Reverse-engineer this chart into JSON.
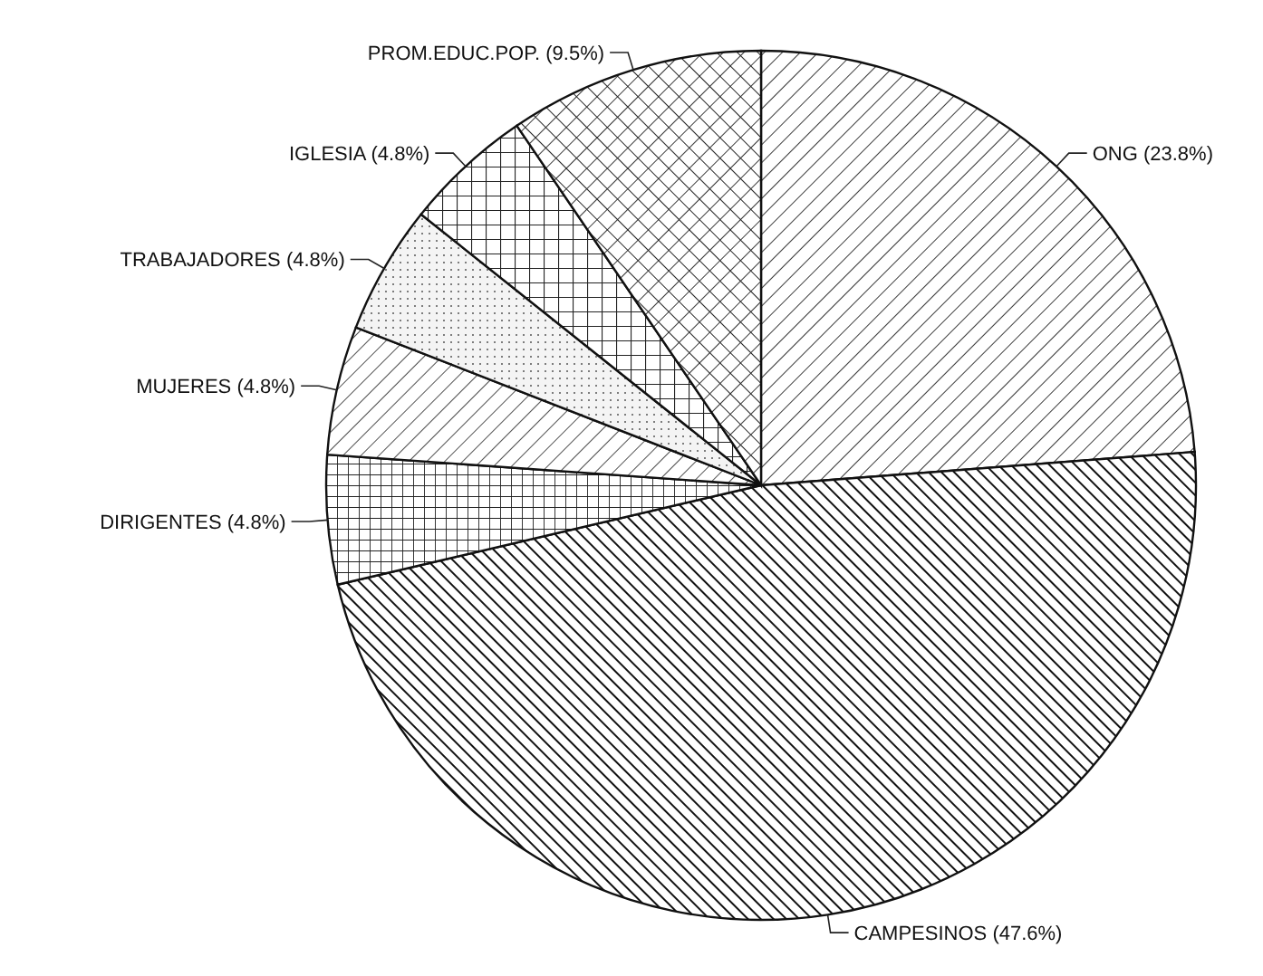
{
  "chart_data": {
    "type": "pie",
    "categories": [
      "ONG",
      "CAMPESINOS",
      "DIRIGENTES",
      "MUJERES",
      "TRABAJADORES",
      "IGLESIA",
      "PROM.EDUC.POP."
    ],
    "values": [
      23.8,
      47.6,
      4.8,
      4.8,
      4.8,
      4.8,
      9.5
    ],
    "value_labels": [
      "(23.8%)",
      "(47.6%)",
      "(4.8%)",
      "(4.8%)",
      "(4.8%)",
      "(4.8%)",
      "(9.5%)"
    ]
  }
}
